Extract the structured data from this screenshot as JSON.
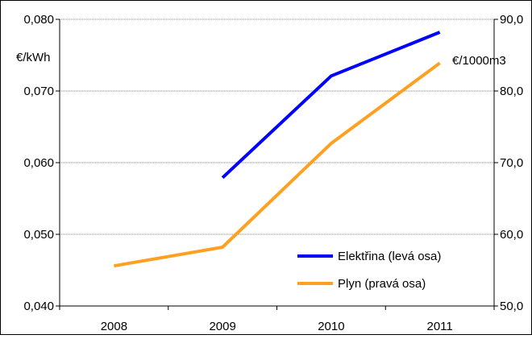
{
  "chart_data": {
    "type": "line",
    "categories": [
      "2008",
      "2009",
      "2010",
      "2011"
    ],
    "y_left": {
      "unit_label": "€/kWh",
      "ylim": [
        0.04,
        0.08
      ],
      "ticks": [
        "0,040",
        "0,050",
        "0,060",
        "0,070",
        "0,080"
      ]
    },
    "y_right": {
      "unit_label": "€/1000m3",
      "ylim": [
        50.0,
        90.0
      ],
      "ticks": [
        "50,0",
        "60,0",
        "70,0",
        "80,0",
        "90,0"
      ]
    },
    "grid": true,
    "legend_position": "bottom-right",
    "series": [
      {
        "name": "Elektřina (levá osa)",
        "axis": "left",
        "color": "#0000ff",
        "values": [
          null,
          0.0579,
          0.0721,
          0.0782
        ]
      },
      {
        "name": "Plyn (pravá osa)",
        "axis": "right",
        "color": "#ffa020",
        "values": [
          55.6,
          58.2,
          72.7,
          83.9
        ]
      }
    ]
  }
}
